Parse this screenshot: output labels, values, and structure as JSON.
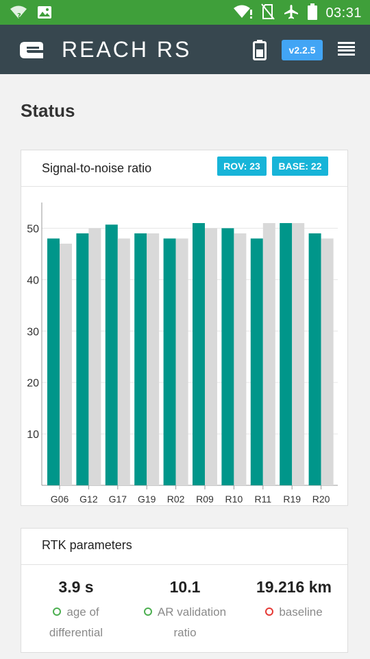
{
  "statusbar": {
    "time": "03:31"
  },
  "app": {
    "title": "REACH RS",
    "version": "v2.2.5"
  },
  "page": {
    "title": "Status"
  },
  "snr_card": {
    "title": "Signal-to-noise ratio",
    "rover_badge": "ROV: 23",
    "base_badge": "BASE: 22"
  },
  "chart_data": {
    "type": "bar",
    "categories": [
      "G06",
      "G12",
      "G17",
      "G19",
      "R02",
      "R09",
      "R10",
      "R11",
      "R19",
      "R20"
    ],
    "series": [
      {
        "values": [
          48,
          49,
          50.7,
          49,
          48,
          51,
          50,
          48,
          51,
          49
        ],
        "color": "#00968a"
      },
      {
        "values": [
          47,
          50,
          48,
          49,
          48,
          50,
          49,
          51,
          51,
          48
        ],
        "color": "#d9d9d9"
      }
    ],
    "yticks": [
      10,
      20,
      30,
      40,
      50
    ],
    "ylim": [
      0,
      55
    ],
    "grid": true
  },
  "rtk_card": {
    "title": "RTK parameters",
    "stats": [
      {
        "value": "3.9 s",
        "label_line1": "age of",
        "label_line2": "differential",
        "status_color": "#4caf50"
      },
      {
        "value": "10.1",
        "label_line1": "AR validation",
        "label_line2": "ratio",
        "status_color": "#4caf50"
      },
      {
        "value": "19.216 km",
        "label_line1": "baseline",
        "label_line2": "",
        "status_color": "#e53935"
      }
    ]
  }
}
